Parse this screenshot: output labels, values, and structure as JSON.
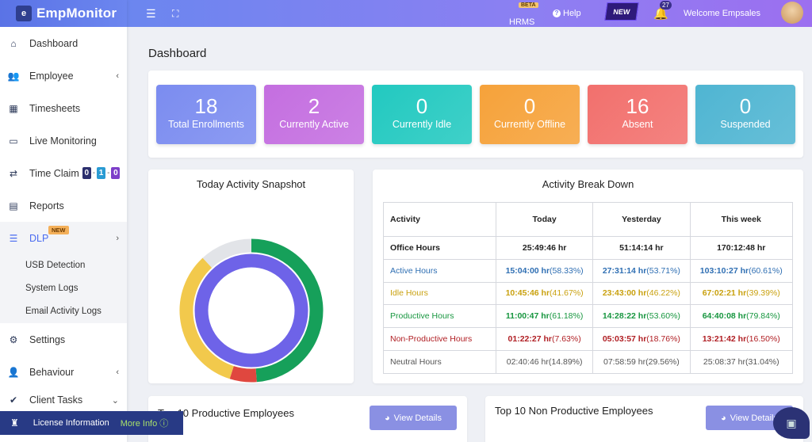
{
  "logo": {
    "text": "EmpMonitor"
  },
  "sidebar": {
    "items": [
      {
        "label": "Dashboard",
        "icon": "home-icon"
      },
      {
        "label": "Employee",
        "icon": "users-icon"
      },
      {
        "label": "Timesheets",
        "icon": "calendar-icon"
      },
      {
        "label": "Live Monitoring",
        "icon": "monitor-icon"
      },
      {
        "label": "Time Claim",
        "icon": "swap-icon",
        "counts": [
          "0",
          "1",
          "0"
        ]
      },
      {
        "label": "Reports",
        "icon": "report-icon"
      },
      {
        "label": "DLP",
        "icon": "sliders-icon",
        "badge": "NEW"
      },
      {
        "label": "Settings",
        "icon": "gear-icon"
      },
      {
        "label": "Behaviour",
        "icon": "user-gear-icon"
      },
      {
        "label": "Client Tasks",
        "icon": "tasks-icon"
      }
    ],
    "dlp_sub": [
      "USB Detection",
      "System Logs",
      "Email Activity Logs"
    ]
  },
  "topbar": {
    "hrms": "HRMS",
    "beta": "BETA",
    "help": "Help",
    "new": "NEW",
    "notif_count": "27",
    "welcome": "Welcome",
    "user": "Empsales"
  },
  "page": {
    "title": "Dashboard"
  },
  "stats": [
    {
      "value": "18",
      "label": "Total Enrollments",
      "color": "#7b8cf0"
    },
    {
      "value": "2",
      "label": "Currently Active",
      "color": "#c46ee0"
    },
    {
      "value": "0",
      "label": "Currently Idle",
      "color": "#22c9c0"
    },
    {
      "value": "0",
      "label": "Currently Offline",
      "color": "#f6a23a"
    },
    {
      "value": "16",
      "label": "Absent",
      "color": "#f2706d"
    },
    {
      "value": "0",
      "label": "Suspended",
      "color": "#4fb5d2"
    }
  ],
  "snapshot": {
    "title": "Today Activity Snapshot",
    "outer": [
      {
        "name": "Productive",
        "value": 61.18,
        "color": "#16a05a"
      },
      {
        "name": "Non-Productive",
        "value": 7.63,
        "color": "#e0473f"
      },
      {
        "name": "Idle",
        "value": 41.67,
        "color": "#f2c94c"
      },
      {
        "name": "Neutral",
        "value": 14.89,
        "color": "#e2e4e8"
      }
    ],
    "inner_color": "#6e63e8"
  },
  "breakdown": {
    "title": "Activity Break Down",
    "headers": [
      "Activity",
      "Today",
      "Yesterday",
      "This week"
    ],
    "rows": [
      {
        "name": "Office Hours",
        "color": "#222",
        "today": "25:49:46 hr",
        "today_pct": "",
        "yest": "51:14:14 hr",
        "yest_pct": "",
        "week": "170:12:48 hr",
        "week_pct": ""
      },
      {
        "name": "Active Hours",
        "color": "#2f6fb3",
        "today": "15:04:00 hr",
        "today_pct": "(58.33%)",
        "yest": "27:31:14 hr",
        "yest_pct": "(53.71%)",
        "week": "103:10:27 hr",
        "week_pct": "(60.61%)"
      },
      {
        "name": "Idle Hours",
        "color": "#c9a10f",
        "today": "10:45:46 hr",
        "today_pct": "(41.67%)",
        "yest": "23:43:00 hr",
        "yest_pct": "(46.22%)",
        "week": "67:02:21 hr",
        "week_pct": "(39.39%)"
      },
      {
        "name": "Productive Hours",
        "color": "#17963f",
        "today": "11:00:47 hr",
        "today_pct": "(61.18%)",
        "yest": "14:28:22 hr",
        "yest_pct": "(53.60%)",
        "week": "64:40:08 hr",
        "week_pct": "(79.84%)"
      },
      {
        "name": "Non-Productive Hours",
        "color": "#b01e23",
        "today": "01:22:27 hr",
        "today_pct": "(7.63%)",
        "yest": "05:03:57 hr",
        "yest_pct": "(18.76%)",
        "week": "13:21:42 hr",
        "week_pct": "(16.50%)"
      },
      {
        "name": "Neutral Hours",
        "color": "#555",
        "today": "02:40:46 hr",
        "today_pct": "(14.89%)",
        "yest": "07:58:59 hr",
        "yest_pct": "(29.56%)",
        "week": "25:08:37 hr",
        "week_pct": "(31.04%)"
      }
    ]
  },
  "productive": {
    "title": "Top 10 Productive Employees",
    "button": "View Details"
  },
  "nonproductive": {
    "title": "Top 10 Non Productive Employees",
    "button": "View Details"
  },
  "license": {
    "label": "License Information",
    "more": "More Info"
  }
}
